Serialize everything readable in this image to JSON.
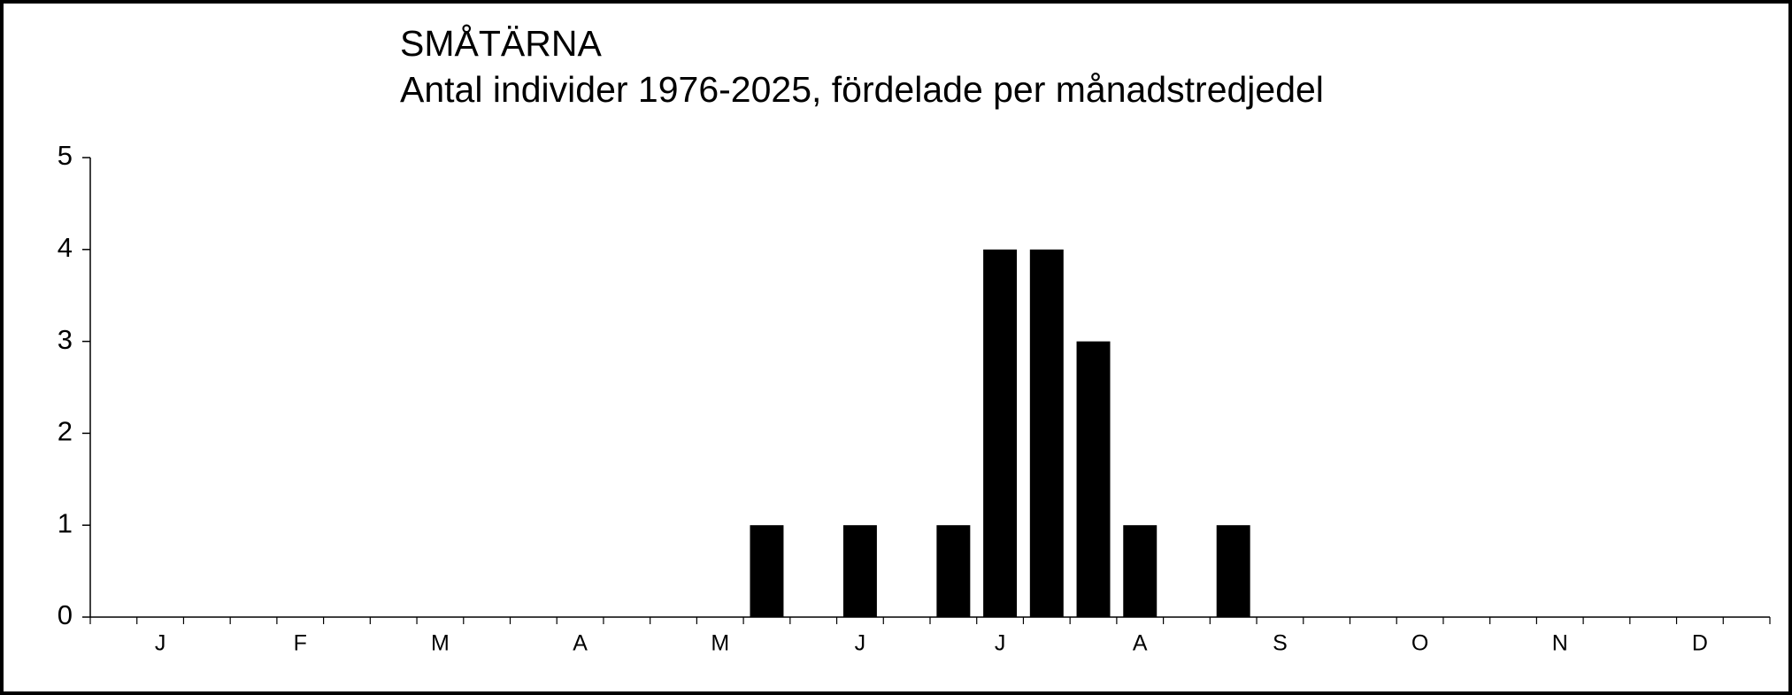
{
  "chart_data": {
    "type": "bar",
    "title": "SMÅTÄRNA",
    "subtitle": "Antal individer 1976-2025, fördelade per månadstredjedel",
    "categories": [
      null,
      "J",
      null,
      null,
      "F",
      null,
      null,
      "M",
      null,
      null,
      "A",
      null,
      null,
      "M",
      null,
      null,
      "J",
      null,
      null,
      "J",
      null,
      null,
      "A",
      null,
      null,
      "S",
      null,
      null,
      "O",
      null,
      null,
      "N",
      null,
      null,
      "D",
      null
    ],
    "values": [
      0,
      0,
      0,
      0,
      0,
      0,
      0,
      0,
      0,
      0,
      0,
      0,
      0,
      0,
      1,
      0,
      1,
      0,
      1,
      4,
      4,
      3,
      1,
      0,
      1,
      0,
      0,
      0,
      0,
      0,
      0,
      0,
      0,
      0,
      0,
      0
    ],
    "color": "#000000",
    "ylim": [
      0,
      5
    ],
    "yticks": [
      0,
      1,
      2,
      3,
      4,
      5
    ],
    "grid": false
  }
}
